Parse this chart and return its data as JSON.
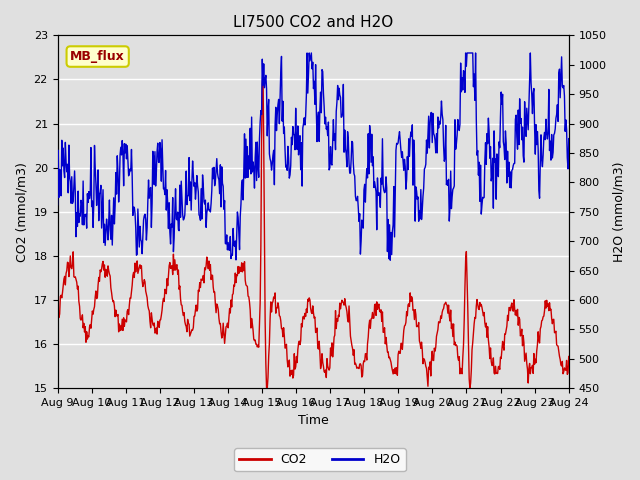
{
  "title": "LI7500 CO2 and H2O",
  "xlabel": "Time",
  "ylabel_left": "CO2 (mmol/m3)",
  "ylabel_right": "H2O (mmol/m3)",
  "co2_ylim": [
    15.0,
    23.0
  ],
  "h2o_ylim": [
    450,
    1050
  ],
  "co2_yticks": [
    15.0,
    16.0,
    17.0,
    18.0,
    19.0,
    20.0,
    21.0,
    22.0,
    23.0
  ],
  "h2o_yticks": [
    450,
    500,
    550,
    600,
    650,
    700,
    750,
    800,
    850,
    900,
    950,
    1000,
    1050
  ],
  "xtick_labels": [
    "Aug 9",
    "Aug 10",
    "Aug 11",
    "Aug 12",
    "Aug 13",
    "Aug 14",
    "Aug 15",
    "Aug 16",
    "Aug 17",
    "Aug 18",
    "Aug 19",
    "Aug 20",
    "Aug 21",
    "Aug 22",
    "Aug 23",
    "Aug 24"
  ],
  "co2_color": "#cc0000",
  "h2o_color": "#0000cc",
  "bg_color": "#e0e0e0",
  "annotation_text": "MB_flux",
  "annotation_bg": "#ffffcc",
  "annotation_edge": "#cccc00",
  "legend_co2": "CO2",
  "legend_h2o": "H2O",
  "title_fontsize": 11,
  "axis_fontsize": 9,
  "tick_fontsize": 8
}
